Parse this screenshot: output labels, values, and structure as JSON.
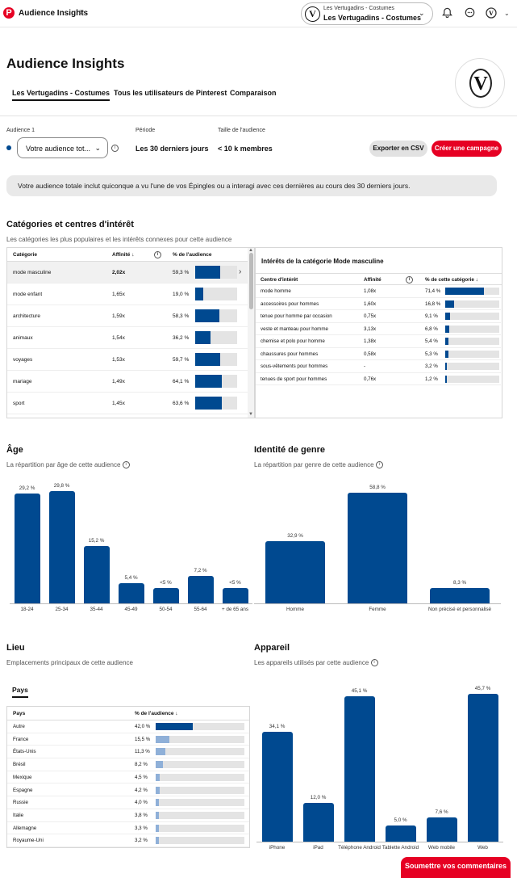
{
  "header": {
    "app_title": "Audience Insights",
    "menu_icon": "hamburger-icon",
    "account_line1": "Les Vertugadins - Costumes",
    "account_line2": "Les Vertugadins - Costumes",
    "avatar_letter": "V",
    "icons": [
      "bell-icon",
      "chat-icon",
      "account-icon"
    ]
  },
  "page": {
    "title": "Audience Insights",
    "tabs": [
      "Les Vertugadins - Costumes",
      "Tous les utilisateurs de Pinterest",
      "Comparaison"
    ]
  },
  "filters": {
    "audience_label": "Audience 1",
    "audience_value": "Votre audience tot...",
    "period_label": "Période",
    "period_value": "Les 30 derniers jours",
    "size_label": "Taille de l'audience",
    "size_value": "< 10 k membres",
    "export_label": "Exporter en CSV",
    "create_label": "Créer une campagne"
  },
  "banner": "Votre audience totale inclut quiconque a vu l'une de vos Épingles ou a interagi avec ces dernières au cours des 30 derniers jours.",
  "categories": {
    "title": "Catégories et centres d'intérêt",
    "subtitle": "Les catégories les plus populaires et les intérêts connexes pour cette audience",
    "headers": {
      "category": "Catégorie",
      "affinity": "Affinité ↓",
      "pct": "% de l'audience"
    },
    "rows": [
      {
        "name": "mode masculine",
        "affinity": "2,02x",
        "pct_label": "59,3 %",
        "pct": 59.3
      },
      {
        "name": "mode enfant",
        "affinity": "1,65x",
        "pct_label": "19,0 %",
        "pct": 19.0
      },
      {
        "name": "architecture",
        "affinity": "1,59x",
        "pct_label": "58,3 %",
        "pct": 58.3
      },
      {
        "name": "animaux",
        "affinity": "1,54x",
        "pct_label": "36,2 %",
        "pct": 36.2
      },
      {
        "name": "voyages",
        "affinity": "1,53x",
        "pct_label": "59,7 %",
        "pct": 59.7
      },
      {
        "name": "mariage",
        "affinity": "1,49x",
        "pct_label": "64,1 %",
        "pct": 64.1
      },
      {
        "name": "sport",
        "affinity": "1,45x",
        "pct_label": "63,6 %",
        "pct": 63.6
      }
    ],
    "detail_title": "Intérêts de la catégorie Mode masculine",
    "detail_headers": {
      "interest": "Centre d'intérêt",
      "affinity": "Affinité",
      "pct": "% de cette catégorie ↓"
    },
    "detail_rows": [
      {
        "name": "mode homme",
        "affinity": "1,08x",
        "pct_label": "71,4 %",
        "pct": 71.4
      },
      {
        "name": "accessoires pour hommes",
        "affinity": "1,60x",
        "pct_label": "16,8 %",
        "pct": 16.8
      },
      {
        "name": "tenue pour homme par occasion",
        "affinity": "0,75x",
        "pct_label": "9,1 %",
        "pct": 9.1
      },
      {
        "name": "veste et manteau pour homme",
        "affinity": "3,13x",
        "pct_label": "6,8 %",
        "pct": 6.8
      },
      {
        "name": "chemise et polo pour homme",
        "affinity": "1,38x",
        "pct_label": "5,4 %",
        "pct": 5.4
      },
      {
        "name": "chaussures pour hommes",
        "affinity": "0,58x",
        "pct_label": "5,3 %",
        "pct": 5.3
      },
      {
        "name": "sous-vêtements pour hommes",
        "affinity": "-",
        "pct_label": "3,2 %",
        "pct": 3.2
      },
      {
        "name": "tenues de sport pour hommes",
        "affinity": "0,76x",
        "pct_label": "1,2 %",
        "pct": 1.2
      }
    ]
  },
  "age": {
    "title": "Âge",
    "subtitle": "La répartition par âge de cette audience"
  },
  "gender": {
    "title": "Identité de genre",
    "subtitle": "La répartition par genre de cette audience"
  },
  "location": {
    "title": "Lieu",
    "subtitle": "Emplacements principaux de cette audience",
    "tab": "Pays",
    "headers": {
      "country": "Pays",
      "pct": "% de l'audience ↓"
    },
    "rows": [
      {
        "name": "Autre",
        "pct_label": "42,0 %",
        "pct": 42.0
      },
      {
        "name": "France",
        "pct_label": "15,5 %",
        "pct": 15.5
      },
      {
        "name": "États-Unis",
        "pct_label": "11,3 %",
        "pct": 11.3
      },
      {
        "name": "Brésil",
        "pct_label": "8,2 %",
        "pct": 8.2
      },
      {
        "name": "Mexique",
        "pct_label": "4,5 %",
        "pct": 4.5
      },
      {
        "name": "Espagne",
        "pct_label": "4,2 %",
        "pct": 4.2
      },
      {
        "name": "Russie",
        "pct_label": "4,0 %",
        "pct": 4.0
      },
      {
        "name": "Italie",
        "pct_label": "3,8 %",
        "pct": 3.8
      },
      {
        "name": "Allemagne",
        "pct_label": "3,3 %",
        "pct": 3.3
      },
      {
        "name": "Royaume-Uni",
        "pct_label": "3,2 %",
        "pct": 3.2
      }
    ]
  },
  "device": {
    "title": "Appareil",
    "subtitle": "Les appareils utilisés par cette audience"
  },
  "feedback_label": "Soumettre vos commentaires",
  "chart_data": [
    {
      "type": "bar",
      "title": "Âge",
      "categories": [
        "18-24",
        "25-34",
        "35-44",
        "45-49",
        "50-54",
        "55-64",
        "+ de 65 ans"
      ],
      "values": [
        29.2,
        29.8,
        15.2,
        5.4,
        4.0,
        7.2,
        4.0
      ],
      "labels": [
        "29,2 %",
        "29,8 %",
        "15,2 %",
        "5,4 %",
        "<5 %",
        "7,2 %",
        "<5 %"
      ],
      "ylim": [
        0,
        30
      ]
    },
    {
      "type": "bar",
      "title": "Identité de genre",
      "categories": [
        "Homme",
        "Femme",
        "Non précisé et personnalisé"
      ],
      "values": [
        32.9,
        58.8,
        8.3
      ],
      "labels": [
        "32,9 %",
        "58,8 %",
        "8,3 %"
      ],
      "ylim": [
        0,
        60
      ]
    },
    {
      "type": "bar",
      "title": "Appareil",
      "categories": [
        "iPhone",
        "iPad",
        "Téléphone Android",
        "Tablette Android",
        "Web mobile",
        "Web"
      ],
      "values": [
        34.1,
        12.0,
        45.1,
        5.0,
        7.6,
        45.7
      ],
      "labels": [
        "34,1 %",
        "12,0 %",
        "45,1 %",
        "5,0 %",
        "7,6 %",
        "45,7 %"
      ],
      "ylim": [
        0,
        46
      ]
    }
  ]
}
